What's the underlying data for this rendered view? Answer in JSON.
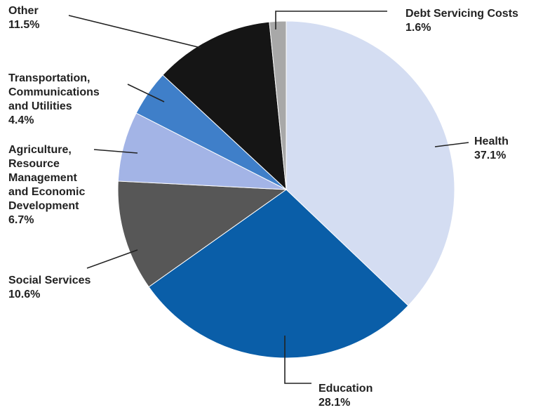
{
  "chart_data": {
    "type": "pie",
    "title": "",
    "start_angle_deg": 0,
    "direction": "clockwise",
    "slices": [
      {
        "label": [
          "Health"
        ],
        "value_label": "37.1%",
        "value": 37.1,
        "color": "#d4ddf2"
      },
      {
        "label": [
          "Education"
        ],
        "value_label": "28.1%",
        "value": 28.1,
        "color": "#0a5ea8"
      },
      {
        "label": [
          "Social Services"
        ],
        "value_label": "10.6%",
        "value": 10.6,
        "color": "#575757"
      },
      {
        "label": [
          "Agriculture,",
          "Resource",
          "Management",
          "and Economic",
          "Development"
        ],
        "value_label": "6.7%",
        "value": 6.7,
        "color": "#a3b4e6"
      },
      {
        "label": [
          "Transportation,",
          "Communications",
          "and Utilities"
        ],
        "value_label": "4.4%",
        "value": 4.4,
        "color": "#3f7fc9"
      },
      {
        "label": [
          "Other"
        ],
        "value_label": "11.5%",
        "value": 11.5,
        "color": "#151515"
      },
      {
        "label": [
          "Debt Servicing Costs"
        ],
        "value_label": "1.6%",
        "value": 1.6,
        "color": "#a8a8a8"
      }
    ]
  }
}
